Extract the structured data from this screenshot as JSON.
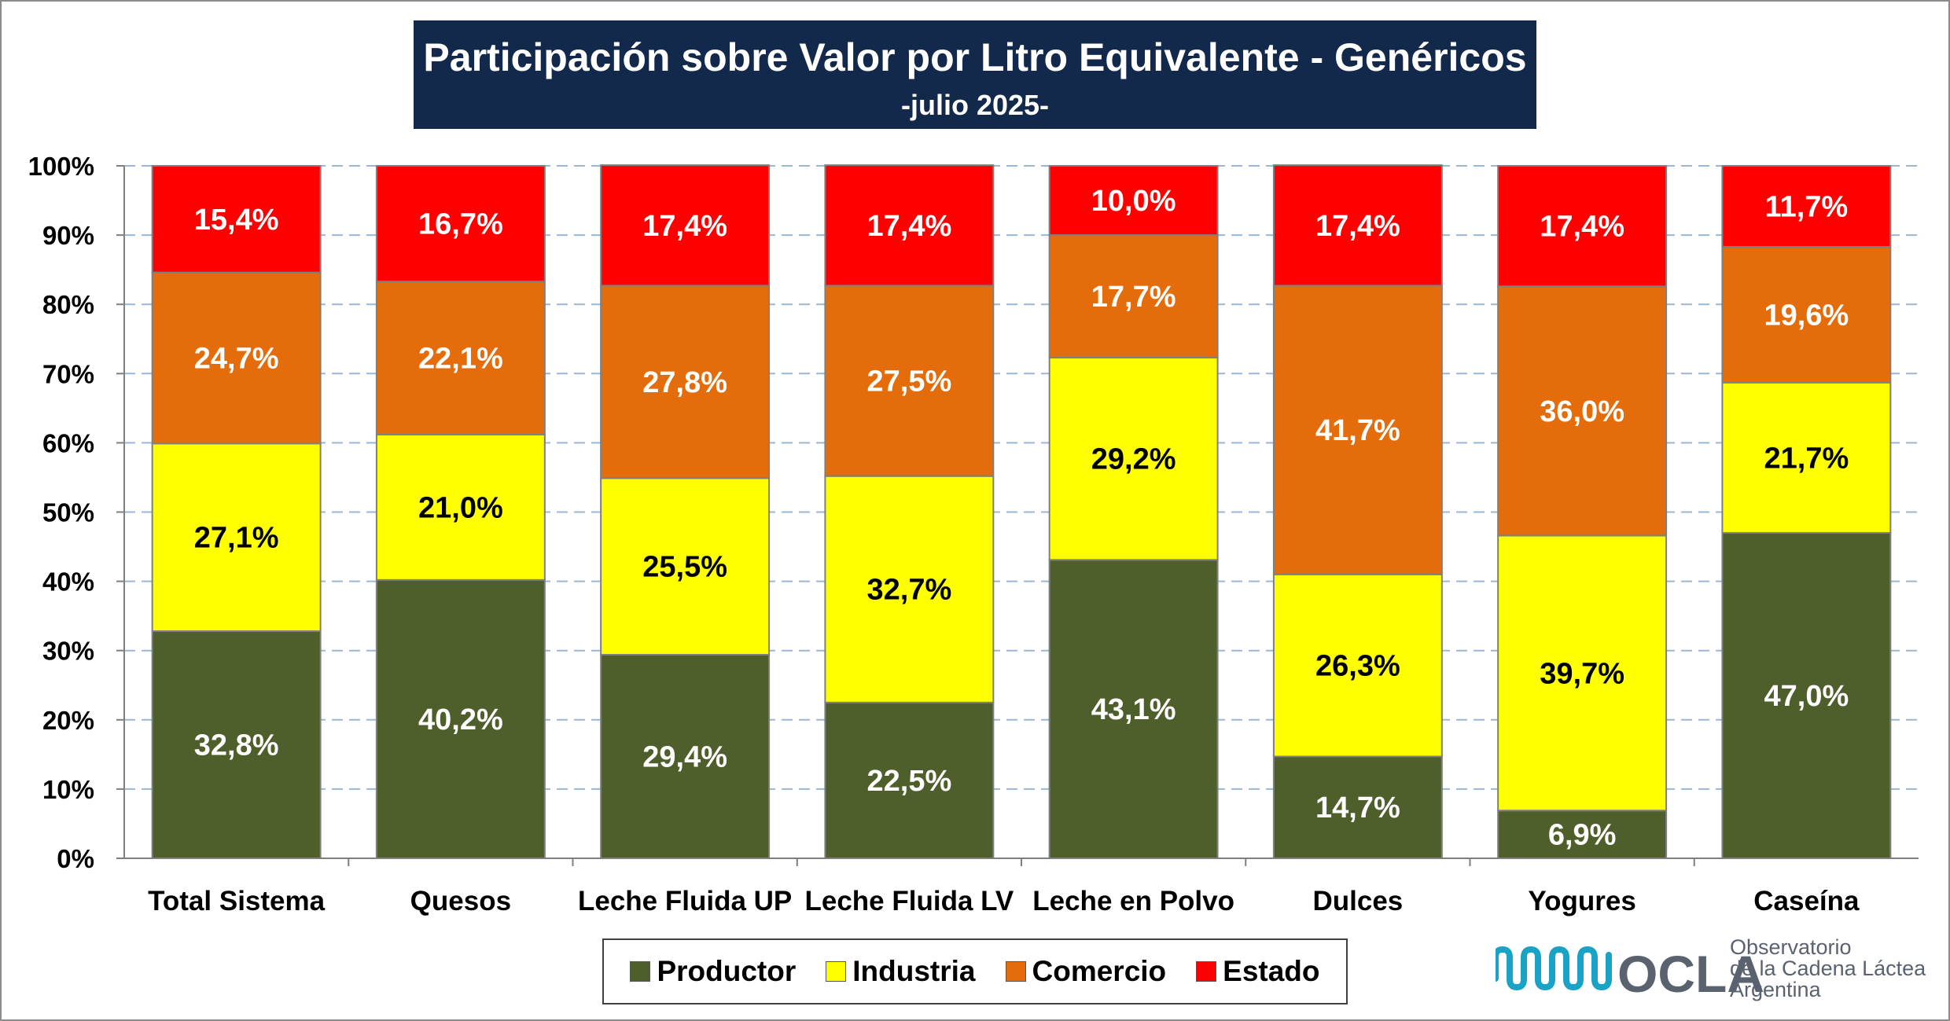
{
  "colors": {
    "productor": "#4f5f2b",
    "industria": "#ffff00",
    "comercio": "#e46c0a",
    "estado": "#ff0000",
    "title_bg": "#13294b",
    "grid": "#9bb7d4",
    "logo": "#1ba3c6"
  },
  "logo": {
    "name": "OCLA",
    "line1": "Observatorio",
    "line2": "de la Cadena Láctea",
    "line3": "Argentina"
  },
  "chart_data": {
    "type": "bar",
    "stacked": true,
    "title": "Participación sobre Valor por Litro Equivalente - Genéricos",
    "subtitle": "-julio 2025-",
    "xlabel": "",
    "ylabel": "",
    "ylim": [
      0,
      100
    ],
    "yticks": [
      "0%",
      "10%",
      "20%",
      "30%",
      "40%",
      "50%",
      "60%",
      "70%",
      "80%",
      "90%",
      "100%"
    ],
    "grid": true,
    "legend": "bottom",
    "categories": [
      "Total Sistema",
      "Quesos",
      "Leche Fluida UP",
      "Leche Fluida LV",
      "Leche en Polvo",
      "Dulces",
      "Yogures",
      "Caseína"
    ],
    "series": [
      {
        "name": "Productor",
        "color": "#4f5f2b",
        "label_color": "#ffffff",
        "values": [
          32.8,
          40.2,
          29.4,
          22.5,
          43.1,
          14.7,
          6.9,
          47.0
        ],
        "labels": [
          "32,8%",
          "40,2%",
          "29,4%",
          "22,5%",
          "43,1%",
          "14,7%",
          "6,9%",
          "47,0%"
        ]
      },
      {
        "name": "Industria",
        "color": "#ffff00",
        "label_color": "#000000",
        "values": [
          27.1,
          21.0,
          25.5,
          32.7,
          29.2,
          26.3,
          39.7,
          21.7
        ],
        "labels": [
          "27,1%",
          "21,0%",
          "25,5%",
          "32,7%",
          "29,2%",
          "26,3%",
          "39,7%",
          "21,7%"
        ]
      },
      {
        "name": "Comercio",
        "color": "#e46c0a",
        "label_color": "#ffffff",
        "values": [
          24.7,
          22.1,
          27.8,
          27.5,
          17.7,
          41.7,
          36.0,
          19.6
        ],
        "labels": [
          "24,7%",
          "22,1%",
          "27,8%",
          "27,5%",
          "17,7%",
          "41,7%",
          "36,0%",
          "19,6%"
        ]
      },
      {
        "name": "Estado",
        "color": "#ff0000",
        "label_color": "#ffffff",
        "values": [
          15.4,
          16.7,
          17.4,
          17.4,
          10.0,
          17.4,
          17.4,
          11.7
        ],
        "labels": [
          "15,4%",
          "16,7%",
          "17,4%",
          "17,4%",
          "10,0%",
          "17,4%",
          "17,4%",
          "11,7%"
        ]
      }
    ]
  }
}
